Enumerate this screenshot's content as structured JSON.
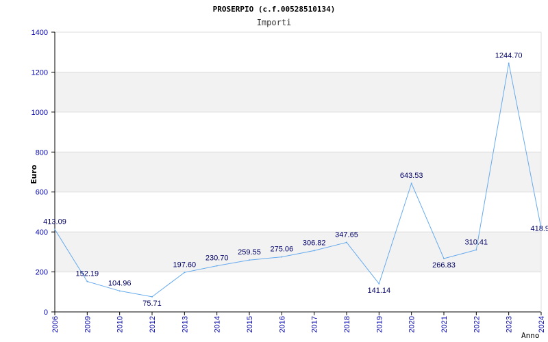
{
  "chart_data": {
    "type": "line",
    "title": "PROSERPIO (c.f.00528510134)",
    "subtitle": "Importi",
    "xlabel": "Anno",
    "ylabel": "Euro",
    "categories": [
      "2006",
      "2009",
      "2010",
      "2012",
      "2013",
      "2014",
      "2015",
      "2016",
      "2017",
      "2018",
      "2019",
      "2020",
      "2021",
      "2022",
      "2023",
      "2024"
    ],
    "values": [
      413.09,
      152.19,
      104.96,
      75.71,
      197.6,
      230.7,
      259.55,
      275.06,
      306.82,
      347.65,
      141.14,
      643.53,
      266.83,
      310.41,
      1244.7,
      418.9
    ],
    "labels": [
      "413.09",
      "152.19",
      "104.96",
      "75.71",
      "197.60",
      "230.70",
      "259.55",
      "275.06",
      "306.82",
      "347.65",
      "141.14",
      "643.53",
      "266.83",
      "310.41",
      "1244.70",
      "418.9"
    ],
    "ylim": [
      0,
      1400
    ],
    "yticks": [
      "0",
      "200",
      "400",
      "600",
      "800",
      "1000",
      "1200",
      "1400"
    ],
    "grid": true,
    "colors": {
      "line": "#66aaee",
      "band": "#f2f2f2",
      "grid": "#dddddd",
      "axis": "#000000",
      "tick_text": "#0000aa",
      "label_text": "#000066"
    }
  }
}
